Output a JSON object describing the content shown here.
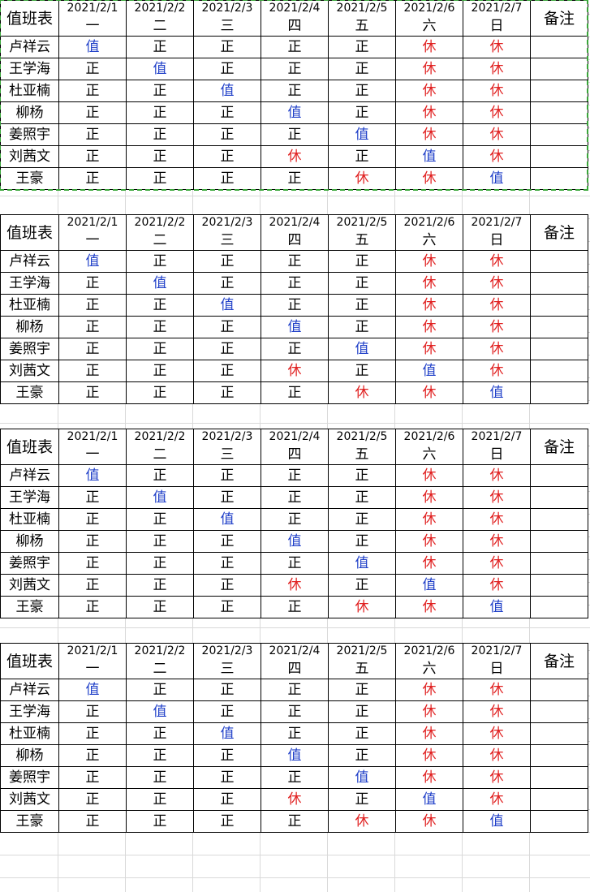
{
  "colors": {
    "duty": "#1f3fc8",
    "rest": "#e02020",
    "selection": "#3aa63a"
  },
  "header": {
    "title": "值班表",
    "remark": "备注",
    "dates": [
      "2021/2/1",
      "2021/2/2",
      "2021/2/3",
      "2021/2/4",
      "2021/2/5",
      "2021/2/6",
      "2021/2/7"
    ],
    "weekdays": [
      "一",
      "二",
      "三",
      "四",
      "五",
      "六",
      "日"
    ]
  },
  "rows": [
    {
      "name": "卢祥云",
      "cells": [
        "值",
        "正",
        "正",
        "正",
        "正",
        "休",
        "休"
      ]
    },
    {
      "name": "王学海",
      "cells": [
        "正",
        "值",
        "正",
        "正",
        "正",
        "休",
        "休"
      ]
    },
    {
      "name": "杜亚楠",
      "cells": [
        "正",
        "正",
        "值",
        "正",
        "正",
        "休",
        "休"
      ]
    },
    {
      "name": "柳杨",
      "cells": [
        "正",
        "正",
        "正",
        "值",
        "正",
        "休",
        "休"
      ]
    },
    {
      "name": "姜照宇",
      "cells": [
        "正",
        "正",
        "正",
        "正",
        "值",
        "休",
        "休"
      ]
    },
    {
      "name": "刘茜文",
      "cells": [
        "正",
        "正",
        "正",
        "休",
        "正",
        "值",
        "休"
      ]
    },
    {
      "name": "王豪",
      "cells": [
        "正",
        "正",
        "正",
        "正",
        "休",
        "休",
        "值"
      ]
    }
  ]
}
